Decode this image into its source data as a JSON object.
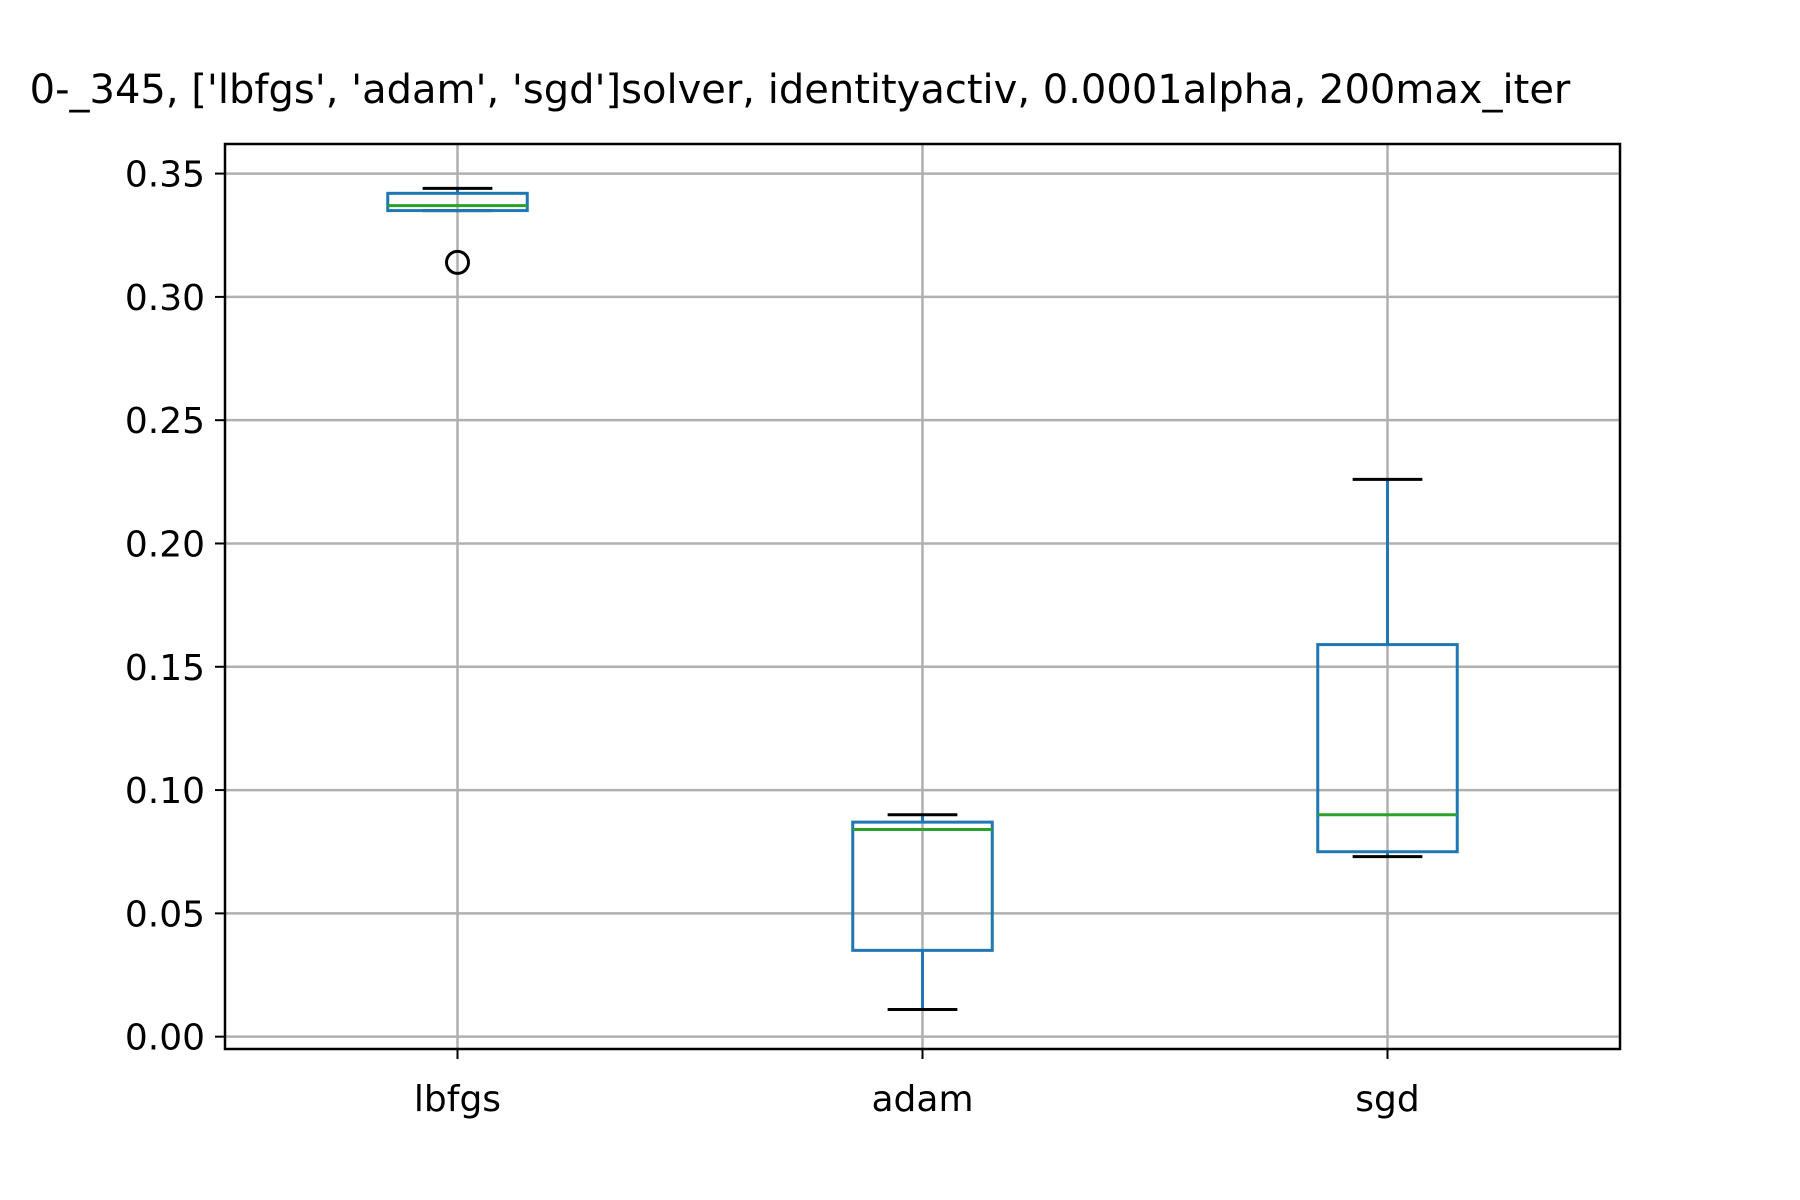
{
  "chart_data": {
    "type": "box",
    "title": "0-_345, ['lbfgs', 'adam', 'sgd']solver, identityactiv, 0.0001alpha, 200max_iter",
    "xlabel": "",
    "ylabel": "",
    "categories": [
      "lbfgs",
      "adam",
      "sgd"
    ],
    "ylim": [
      -0.005,
      0.362
    ],
    "yticks": [
      0.0,
      0.05,
      0.1,
      0.15,
      0.2,
      0.25,
      0.3,
      0.35
    ],
    "ytick_labels": [
      "0.00",
      "0.05",
      "0.10",
      "0.15",
      "0.20",
      "0.25",
      "0.30",
      "0.35"
    ],
    "grid": true,
    "boxes": [
      {
        "category": "lbfgs",
        "whisker_low": 0.335,
        "q1": 0.335,
        "median": 0.337,
        "q3": 0.342,
        "whisker_high": 0.344,
        "outliers": [
          0.314
        ]
      },
      {
        "category": "adam",
        "whisker_low": 0.011,
        "q1": 0.035,
        "median": 0.084,
        "q3": 0.087,
        "whisker_high": 0.09,
        "outliers": []
      },
      {
        "category": "sgd",
        "whisker_low": 0.073,
        "q1": 0.075,
        "median": 0.09,
        "q3": 0.159,
        "whisker_high": 0.226,
        "outliers": []
      }
    ],
    "colors": {
      "box": "#1f77b4",
      "median": "#2ca02c",
      "whisker_cap": "#000000",
      "outlier": "#000000",
      "grid": "#b0b0b0"
    }
  }
}
